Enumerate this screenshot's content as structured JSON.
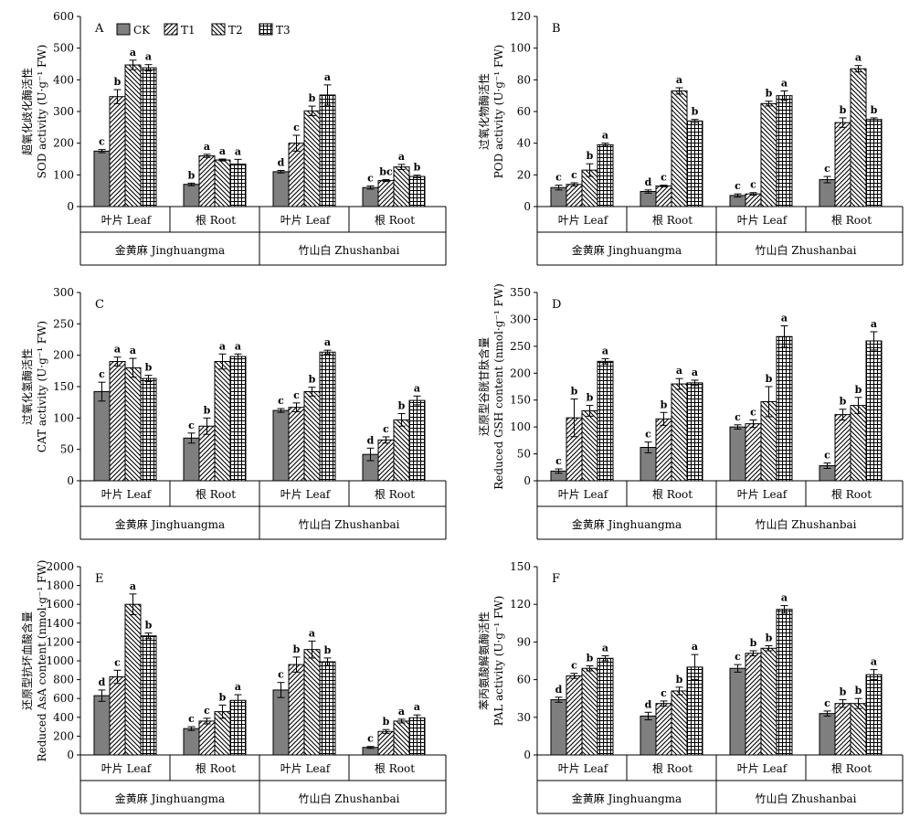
{
  "figure": {
    "legend": [
      {
        "name": "CK",
        "fill": "solid-gray"
      },
      {
        "name": "T1",
        "fill": "diag-right"
      },
      {
        "name": "T2",
        "fill": "diag-left"
      },
      {
        "name": "T3",
        "fill": "grid"
      }
    ],
    "colors": {
      "ck_fill": "#7f7f7f",
      "ink": "#000000",
      "background": "#ffffff"
    },
    "group_labels": [
      "叶片 Leaf",
      "根 Root",
      "叶片 Leaf",
      "根 Root"
    ],
    "cultivar_labels": [
      "金黄麻 Jinghuangma",
      "竹山白 Zhushanbai"
    ]
  },
  "chart_data": [
    {
      "type": "bar",
      "panel": "A",
      "ylabel_cn": "超氧化歧化酶活性",
      "ylabel_en": "SOD activity (U·g⁻¹ FW)",
      "ylim": [
        0,
        600
      ],
      "yticks": [
        0,
        100,
        200,
        300,
        400,
        500,
        600
      ],
      "show_legend": true,
      "groups": [
        {
          "values": [
            175,
            347,
            447,
            438
          ],
          "errors": [
            5,
            22,
            15,
            10
          ],
          "letters": [
            "c",
            "b",
            "a",
            "a"
          ]
        },
        {
          "values": [
            70,
            160,
            147,
            134
          ],
          "errors": [
            4,
            5,
            3,
            15
          ],
          "letters": [
            "b",
            "a",
            "a",
            "a"
          ]
        },
        {
          "values": [
            110,
            200,
            302,
            352
          ],
          "errors": [
            4,
            25,
            15,
            32
          ],
          "letters": [
            "d",
            "c",
            "b",
            "a"
          ]
        },
        {
          "values": [
            60,
            82,
            125,
            95
          ],
          "errors": [
            5,
            3,
            8,
            4
          ],
          "letters": [
            "c",
            "bc",
            "a",
            "b"
          ]
        }
      ]
    },
    {
      "type": "bar",
      "panel": "B",
      "ylabel_cn": "过氧化物酶活性",
      "ylabel_en": "POD activity (U·g⁻¹ FW)",
      "ylim": [
        0,
        120
      ],
      "yticks": [
        0,
        20,
        40,
        60,
        80,
        100,
        120
      ],
      "show_legend": false,
      "groups": [
        {
          "values": [
            12,
            14,
            23,
            39
          ],
          "errors": [
            1.5,
            1,
            4,
            1
          ],
          "letters": [
            "c",
            "c",
            "b",
            "a"
          ]
        },
        {
          "values": [
            9.5,
            13,
            73,
            54
          ],
          "errors": [
            1,
            0.5,
            2,
            1
          ],
          "letters": [
            "d",
            "c",
            "a",
            "b"
          ]
        },
        {
          "values": [
            7,
            8,
            65,
            70
          ],
          "errors": [
            1,
            0.8,
            1.5,
            3
          ],
          "letters": [
            "c",
            "c",
            "b",
            "a"
          ]
        },
        {
          "values": [
            17,
            53,
            87,
            55
          ],
          "errors": [
            2,
            3,
            2,
            1
          ],
          "letters": [
            "c",
            "b",
            "a",
            "b"
          ]
        }
      ]
    },
    {
      "type": "bar",
      "panel": "C",
      "ylabel_cn": "过氧化氢酶活性",
      "ylabel_en": "CAT activity (U·g⁻¹ FW)",
      "ylim": [
        0,
        300
      ],
      "yticks": [
        0,
        50,
        100,
        150,
        200,
        250,
        300
      ],
      "show_legend": false,
      "groups": [
        {
          "values": [
            142,
            190,
            180,
            163
          ],
          "errors": [
            15,
            7,
            15,
            5
          ],
          "letters": [
            "c",
            "a",
            "a",
            "b"
          ]
        },
        {
          "values": [
            68,
            87,
            190,
            198
          ],
          "errors": [
            8,
            13,
            12,
            4
          ],
          "letters": [
            "c",
            "b",
            "a",
            "a"
          ]
        },
        {
          "values": [
            112,
            117,
            142,
            205
          ],
          "errors": [
            3,
            7,
            7,
            3
          ],
          "letters": [
            "c",
            "c",
            "b",
            "a"
          ]
        },
        {
          "values": [
            42,
            65,
            97,
            128
          ],
          "errors": [
            10,
            5,
            10,
            7
          ],
          "letters": [
            "d",
            "c",
            "b",
            "a"
          ]
        }
      ]
    },
    {
      "type": "bar",
      "panel": "D",
      "ylabel_cn": "还原型谷胱甘肽含量",
      "ylabel_en": "Reduced GSH content (nmol·g⁻¹ FW)",
      "ylim": [
        0,
        350
      ],
      "yticks": [
        0,
        50,
        100,
        150,
        200,
        250,
        300,
        350
      ],
      "show_legend": false,
      "groups": [
        {
          "values": [
            18,
            117,
            130,
            222
          ],
          "errors": [
            4,
            35,
            10,
            5
          ],
          "letters": [
            "c",
            "b",
            "b",
            "a"
          ]
        },
        {
          "values": [
            62,
            115,
            180,
            182
          ],
          "errors": [
            10,
            12,
            10,
            5
          ],
          "letters": [
            "c",
            "b",
            "a",
            "a"
          ]
        },
        {
          "values": [
            100,
            106,
            147,
            268
          ],
          "errors": [
            4,
            7,
            28,
            20
          ],
          "letters": [
            "c",
            "c",
            "b",
            "a"
          ]
        },
        {
          "values": [
            28,
            123,
            140,
            260
          ],
          "errors": [
            5,
            10,
            15,
            17
          ],
          "letters": [
            "c",
            "b",
            "b",
            "a"
          ]
        }
      ]
    },
    {
      "type": "bar",
      "panel": "E",
      "ylabel_cn": "还原型抗坏血酸含量",
      "ylabel_en": "Reduced AsA content (nmol·g⁻¹ FW)",
      "ylim": [
        0,
        2000
      ],
      "yticks": [
        0,
        200,
        400,
        600,
        800,
        1000,
        1200,
        1400,
        1600,
        1800,
        2000
      ],
      "show_legend": false,
      "groups": [
        {
          "values": [
            630,
            830,
            1600,
            1265
          ],
          "errors": [
            60,
            70,
            110,
            30
          ],
          "letters": [
            "d",
            "c",
            "a",
            "b"
          ]
        },
        {
          "values": [
            280,
            360,
            460,
            580
          ],
          "errors": [
            20,
            30,
            70,
            60
          ],
          "letters": [
            "c",
            "c",
            "b",
            "a"
          ]
        },
        {
          "values": [
            690,
            960,
            1120,
            990
          ],
          "errors": [
            80,
            80,
            90,
            40
          ],
          "letters": [
            "c",
            "b",
            "a",
            "b"
          ]
        },
        {
          "values": [
            80,
            250,
            360,
            395
          ],
          "errors": [
            10,
            20,
            20,
            30
          ],
          "letters": [
            "c",
            "b",
            "a",
            "a"
          ]
        }
      ]
    },
    {
      "type": "bar",
      "panel": "F",
      "ylabel_cn": "苯丙氨酸解氨酶活性",
      "ylabel_en": "PAL activity (U·g⁻¹ FW)",
      "ylim": [
        0,
        150
      ],
      "yticks": [
        0,
        30,
        60,
        90,
        120,
        150
      ],
      "show_legend": false,
      "groups": [
        {
          "values": [
            44,
            63,
            69,
            77
          ],
          "errors": [
            2,
            2,
            2,
            2
          ],
          "letters": [
            "d",
            "c",
            "b",
            "a"
          ]
        },
        {
          "values": [
            31,
            41,
            51,
            70
          ],
          "errors": [
            3,
            2,
            3,
            10
          ],
          "letters": [
            "d",
            "c",
            "b",
            "a"
          ]
        },
        {
          "values": [
            69,
            81,
            85,
            116
          ],
          "errors": [
            3,
            2,
            2,
            3
          ],
          "letters": [
            "c",
            "b",
            "b",
            "a"
          ]
        },
        {
          "values": [
            33,
            41,
            41,
            64
          ],
          "errors": [
            2,
            3,
            4,
            4
          ],
          "letters": [
            "c",
            "b",
            "b",
            "a"
          ]
        }
      ]
    }
  ]
}
